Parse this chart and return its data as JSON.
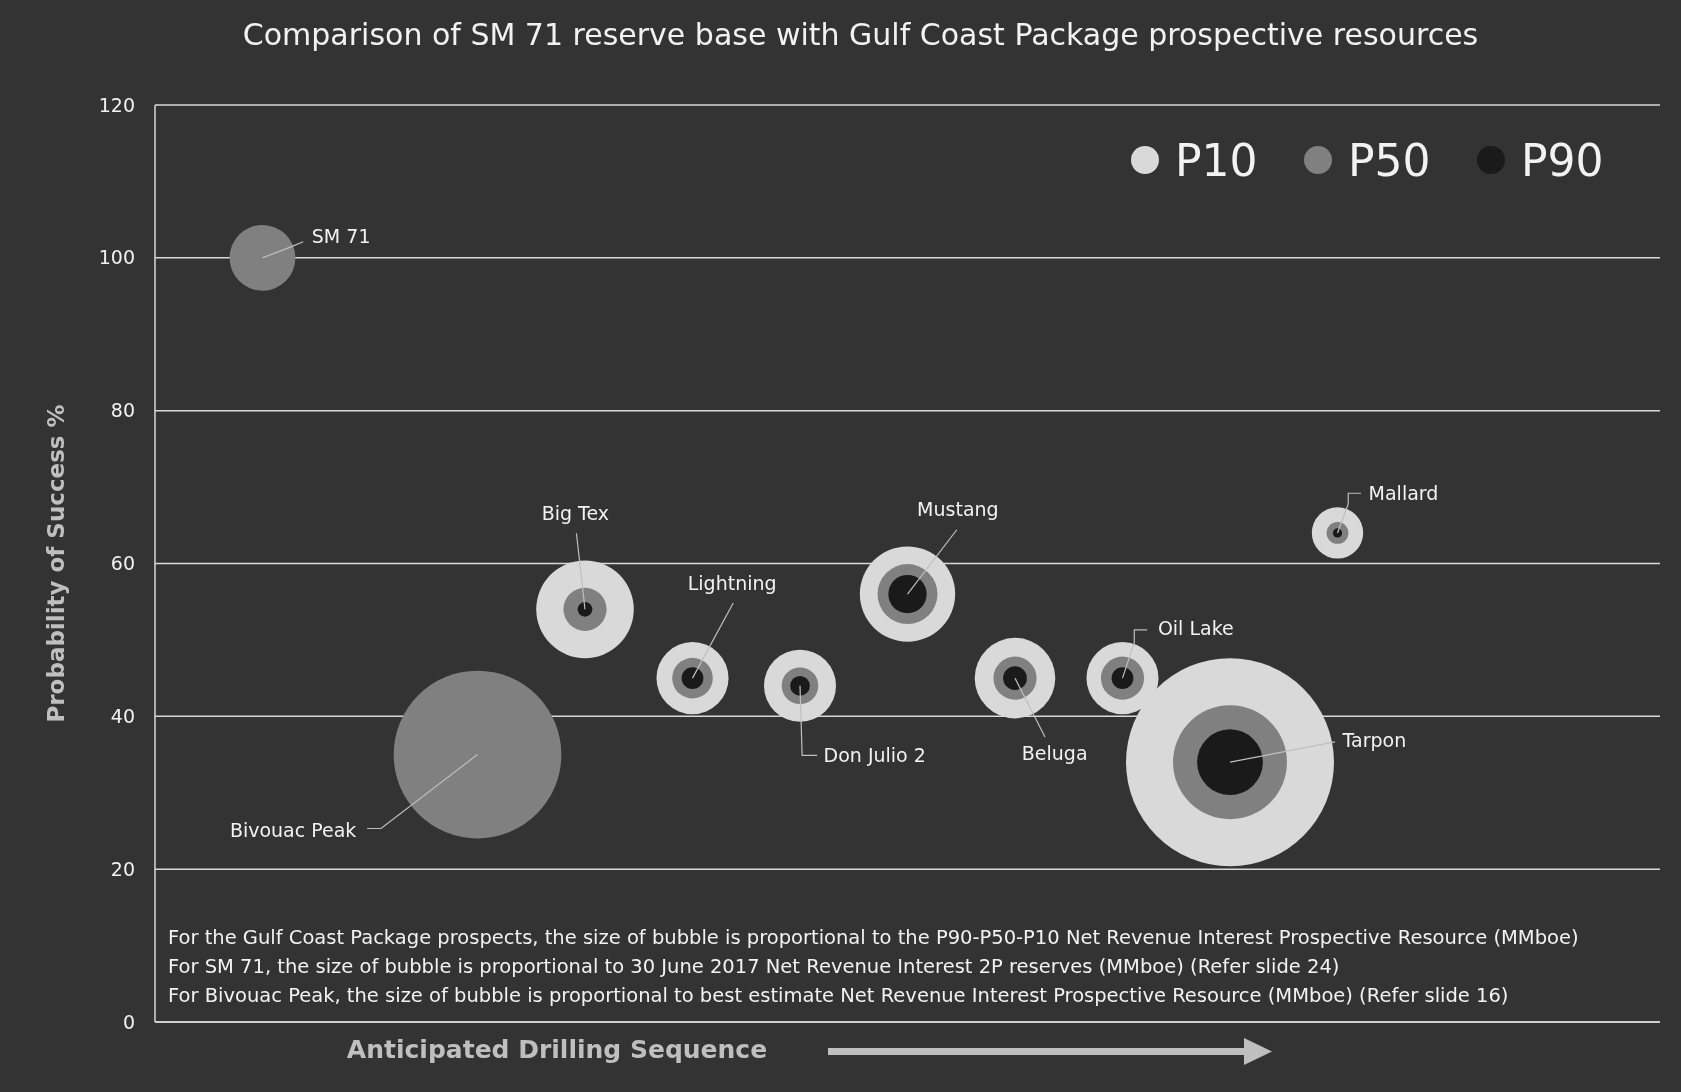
{
  "chart_data": {
    "type": "bubble",
    "title": "Comparison of SM 71 reserve base with Gulf Coast Package prospective resources",
    "xlabel": "Anticipated Drilling Sequence",
    "ylabel": "Probability of Success %",
    "categories": [
      null,
      null,
      null,
      null,
      null,
      null,
      null,
      null,
      null,
      null,
      null,
      null,
      null
    ],
    "ylim": [
      0,
      120
    ],
    "yticks": [
      0,
      20,
      40,
      60,
      80,
      100,
      120
    ],
    "grid": "y",
    "legend": "top right",
    "tick_labels": "y",
    "series": [
      {
        "name": "P10",
        "color": "#d9d9d9",
        "values": [
          null,
          null,
          null,
          54,
          45,
          44,
          56,
          45,
          45,
          34,
          64,
          null,
          null
        ],
        "sizes": [
          null,
          null,
          null,
          0.22,
          0.12,
          0.12,
          0.21,
          0.15,
          0.12,
          1,
          0.061,
          null,
          null
        ]
      },
      {
        "name": "P50",
        "color": "#808080",
        "values": [
          100,
          null,
          35,
          54,
          45,
          44,
          56,
          45,
          45,
          34,
          64,
          null,
          null
        ],
        "sizes": [
          0.1,
          null,
          0.65,
          0.043,
          0.038,
          0.031,
          0.083,
          0.043,
          0.043,
          0.3,
          0.011,
          null,
          null
        ]
      },
      {
        "name": "P90",
        "color": "#1a1a1a",
        "values": [
          null,
          null,
          null,
          54,
          45,
          44,
          56,
          45,
          45,
          34,
          64,
          null,
          null
        ],
        "sizes": [
          null,
          null,
          null,
          0.005,
          0.011,
          0.009,
          0.034,
          0.013,
          0.011,
          0.1,
          0.002,
          null,
          null
        ]
      }
    ],
    "annotations": [
      "SM 71",
      "Bivouac Peak",
      "Big Tex",
      "Lightning",
      "Don Julio 2",
      "Mustang",
      "Beluga",
      "Oil Lake",
      "Tarpon",
      "Mallard",
      "For the Gulf Coast Package prospects, the size of bubble is proportional to the P90-P50-P10 Net Revenue Interest Prospective Resource (MMboe)",
      "For SM 71, the size of bubble is proportional to 30 June 2017 Net Revenue Interest 2P reserves (MMboe) (Refer slide 24)",
      "For Bivouac Peak, the size of bubble is proportional to best estimate Net Revenue Interest Prospective Resource (MMboe) (Refer slide 16)"
    ]
  }
}
